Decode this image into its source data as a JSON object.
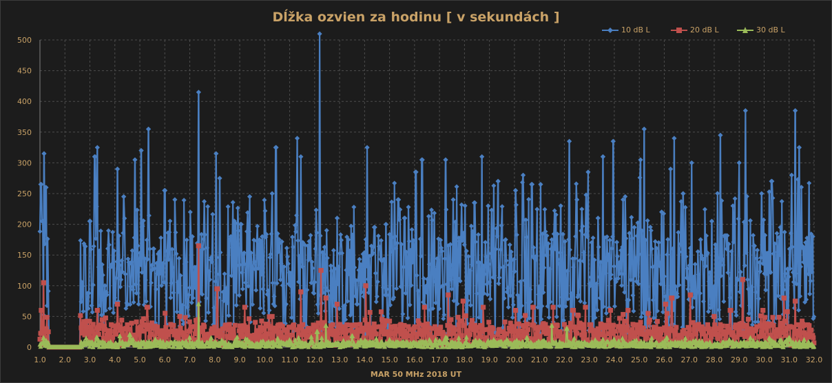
{
  "chart_data": {
    "type": "line",
    "title": "Dĺžka ozvien za hodinu [ v sekundách ]",
    "xlabel": "MAR 50 MHz  2018  UT",
    "ylabel": "",
    "xlim": [
      1.0,
      32.0
    ],
    "ylim": [
      0,
      500
    ],
    "x_ticks": [
      "1.0",
      "2.0",
      "3.0",
      "4.0",
      "5.0",
      "6.0",
      "7.0",
      "8.0",
      "9.0",
      "10.0",
      "11.0",
      "12.0",
      "13.0",
      "14.0",
      "15.0",
      "16.0",
      "17.0",
      "18.0",
      "19.0",
      "20.0",
      "21.0",
      "22.0",
      "23.0",
      "24.0",
      "25.0",
      "26.0",
      "27.0",
      "28.0",
      "29.0",
      "30.0",
      "31.0",
      "32.0"
    ],
    "y_ticks": [
      "0",
      "50",
      "100",
      "150",
      "200",
      "250",
      "300",
      "350",
      "400",
      "450",
      "500"
    ],
    "grid": "dashed",
    "legend_position": "top-right",
    "gap_range": [
      1.35,
      2.6
    ],
    "series": [
      {
        "name": "10 dB L",
        "color": "#4a7fc1",
        "marker": "diamond",
        "peaks": [
          [
            1.04,
            265
          ],
          [
            1.1,
            205
          ],
          [
            1.16,
            315
          ],
          [
            1.24,
            260
          ],
          [
            2.8,
            165
          ],
          [
            3.0,
            205
          ],
          [
            3.2,
            310
          ],
          [
            3.3,
            325
          ],
          [
            3.6,
            100
          ],
          [
            4.1,
            290
          ],
          [
            4.35,
            245
          ],
          [
            4.8,
            305
          ],
          [
            5.05,
            320
          ],
          [
            5.35,
            355
          ],
          [
            5.55,
            160
          ],
          [
            6.0,
            255
          ],
          [
            6.4,
            240
          ],
          [
            6.9,
            65
          ],
          [
            7.1,
            180
          ],
          [
            7.35,
            415
          ],
          [
            7.8,
            110
          ],
          [
            8.05,
            315
          ],
          [
            8.2,
            275
          ],
          [
            8.6,
            175
          ],
          [
            9.05,
            200
          ],
          [
            9.4,
            245
          ],
          [
            9.9,
            180
          ],
          [
            10.3,
            250
          ],
          [
            10.45,
            325
          ],
          [
            10.85,
            70
          ],
          [
            11.3,
            340
          ],
          [
            11.45,
            310
          ],
          [
            11.8,
            145
          ],
          [
            12.2,
            510
          ],
          [
            12.5,
            145
          ],
          [
            12.9,
            210
          ],
          [
            13.35,
            175
          ],
          [
            13.7,
            70
          ],
          [
            14.1,
            325
          ],
          [
            14.4,
            195
          ],
          [
            14.85,
            200
          ],
          [
            15.05,
            155
          ],
          [
            15.35,
            240
          ],
          [
            15.6,
            210
          ],
          [
            16.05,
            285
          ],
          [
            16.3,
            305
          ],
          [
            16.6,
            135
          ],
          [
            17.25,
            305
          ],
          [
            17.55,
            240
          ],
          [
            17.95,
            185
          ],
          [
            18.4,
            235
          ],
          [
            18.7,
            310
          ],
          [
            18.95,
            230
          ],
          [
            19.35,
            270
          ],
          [
            19.65,
            175
          ],
          [
            20.05,
            255
          ],
          [
            20.35,
            280
          ],
          [
            20.7,
            265
          ],
          [
            21.05,
            265
          ],
          [
            21.5,
            175
          ],
          [
            21.85,
            230
          ],
          [
            22.2,
            335
          ],
          [
            22.5,
            240
          ],
          [
            22.95,
            285
          ],
          [
            23.35,
            210
          ],
          [
            23.55,
            310
          ],
          [
            23.95,
            335
          ],
          [
            24.35,
            240
          ],
          [
            24.8,
            195
          ],
          [
            25.05,
            305
          ],
          [
            25.2,
            355
          ],
          [
            25.5,
            160
          ],
          [
            25.9,
            220
          ],
          [
            26.25,
            290
          ],
          [
            26.4,
            340
          ],
          [
            26.75,
            250
          ],
          [
            27.1,
            300
          ],
          [
            27.45,
            175
          ],
          [
            27.9,
            205
          ],
          [
            28.25,
            345
          ],
          [
            28.5,
            160
          ],
          [
            28.75,
            230
          ],
          [
            29.0,
            300
          ],
          [
            29.25,
            385
          ],
          [
            29.6,
            165
          ],
          [
            29.9,
            250
          ],
          [
            30.3,
            270
          ],
          [
            30.65,
            195
          ],
          [
            31.1,
            280
          ],
          [
            31.25,
            385
          ],
          [
            31.4,
            325
          ],
          [
            31.6,
            160
          ],
          [
            31.95,
            180
          ]
        ]
      },
      {
        "name": "20 dB L",
        "color": "#c0504d",
        "marker": "square",
        "peaks": [
          [
            1.05,
            60
          ],
          [
            1.15,
            105
          ],
          [
            1.25,
            30
          ],
          [
            3.3,
            60
          ],
          [
            4.1,
            70
          ],
          [
            5.3,
            65
          ],
          [
            6.6,
            50
          ],
          [
            7.35,
            165
          ],
          [
            8.1,
            95
          ],
          [
            9.2,
            65
          ],
          [
            10.3,
            50
          ],
          [
            11.45,
            90
          ],
          [
            12.25,
            125
          ],
          [
            12.45,
            80
          ],
          [
            12.9,
            70
          ],
          [
            14.05,
            100
          ],
          [
            14.7,
            45
          ],
          [
            16.4,
            65
          ],
          [
            17.35,
            85
          ],
          [
            17.95,
            75
          ],
          [
            18.75,
            65
          ],
          [
            20.05,
            60
          ],
          [
            20.75,
            65
          ],
          [
            21.55,
            65
          ],
          [
            22.35,
            60
          ],
          [
            22.85,
            65
          ],
          [
            23.85,
            60
          ],
          [
            24.55,
            60
          ],
          [
            25.35,
            55
          ],
          [
            26.05,
            70
          ],
          [
            26.3,
            80
          ],
          [
            27.05,
            85
          ],
          [
            28.0,
            50
          ],
          [
            28.65,
            60
          ],
          [
            29.15,
            110
          ],
          [
            29.95,
            60
          ],
          [
            30.8,
            80
          ],
          [
            31.25,
            75
          ],
          [
            31.8,
            35
          ]
        ]
      },
      {
        "name": "30 dB L",
        "color": "#9bbb59",
        "marker": "triangle",
        "peaks": [
          [
            1.15,
            15
          ],
          [
            3.3,
            15
          ],
          [
            4.2,
            18
          ],
          [
            4.6,
            20
          ],
          [
            7.35,
            70
          ],
          [
            7.85,
            15
          ],
          [
            9.3,
            12
          ],
          [
            11.35,
            15
          ],
          [
            12.1,
            25
          ],
          [
            12.45,
            35
          ],
          [
            13.5,
            18
          ],
          [
            15.0,
            12
          ],
          [
            17.3,
            15
          ],
          [
            18.6,
            10
          ],
          [
            19.7,
            12
          ],
          [
            20.5,
            15
          ],
          [
            21.5,
            35
          ],
          [
            22.1,
            30
          ],
          [
            23.55,
            12
          ],
          [
            24.8,
            10
          ],
          [
            26.1,
            15
          ],
          [
            27.4,
            10
          ],
          [
            28.6,
            12
          ],
          [
            29.45,
            15
          ],
          [
            30.3,
            10
          ],
          [
            31.0,
            15
          ],
          [
            31.6,
            12
          ]
        ]
      }
    ]
  }
}
